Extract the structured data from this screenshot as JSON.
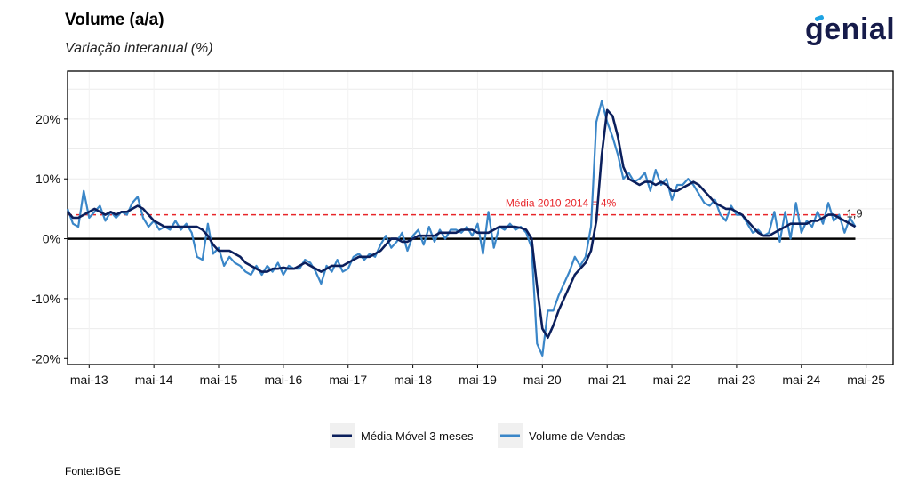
{
  "header": {
    "title": "Volume (a/a)",
    "subtitle": "Variação interanual (%)",
    "logo_text": "genial"
  },
  "footer": {
    "source": "Fonte:IBGE"
  },
  "colors": {
    "ma": "#0b1f5c",
    "volume": "#3a86c8",
    "ref": "#e8262a",
    "zero": "#000000"
  },
  "chart_data": {
    "type": "line",
    "title": "Volume (a/a)",
    "subtitle": "Variação interanual (%)",
    "xlabel": "",
    "ylabel": "",
    "x_ticks": [
      "mai-13",
      "mai-14",
      "mai-15",
      "mai-16",
      "mai-17",
      "mai-18",
      "mai-19",
      "mai-20",
      "mai-21",
      "mai-22",
      "mai-23",
      "mai-24",
      "mai-25"
    ],
    "y_ticks": [
      20,
      10,
      0,
      -10,
      -20
    ],
    "y_tick_labels": [
      "20%",
      "10%",
      "0%",
      "-10%",
      "-20%"
    ],
    "ylim": [
      -21,
      28
    ],
    "x_range": [
      "2013-01",
      "2025-10"
    ],
    "grid": true,
    "legend_position": "bottom",
    "reference_line": {
      "value": 4,
      "label": "Média 2010-2014 = 4%"
    },
    "last_value_label": "1,9",
    "x": [
      "2013-01",
      "2013-02",
      "2013-03",
      "2013-04",
      "2013-05",
      "2013-06",
      "2013-07",
      "2013-08",
      "2013-09",
      "2013-10",
      "2013-11",
      "2013-12",
      "2014-01",
      "2014-02",
      "2014-03",
      "2014-04",
      "2014-05",
      "2014-06",
      "2014-07",
      "2014-08",
      "2014-09",
      "2014-10",
      "2014-11",
      "2014-12",
      "2015-01",
      "2015-02",
      "2015-03",
      "2015-04",
      "2015-05",
      "2015-06",
      "2015-07",
      "2015-08",
      "2015-09",
      "2015-10",
      "2015-11",
      "2015-12",
      "2016-01",
      "2016-02",
      "2016-03",
      "2016-04",
      "2016-05",
      "2016-06",
      "2016-07",
      "2016-08",
      "2016-09",
      "2016-10",
      "2016-11",
      "2016-12",
      "2017-01",
      "2017-02",
      "2017-03",
      "2017-04",
      "2017-05",
      "2017-06",
      "2017-07",
      "2017-08",
      "2017-09",
      "2017-10",
      "2017-11",
      "2017-12",
      "2018-01",
      "2018-02",
      "2018-03",
      "2018-04",
      "2018-05",
      "2018-06",
      "2018-07",
      "2018-08",
      "2018-09",
      "2018-10",
      "2018-11",
      "2018-12",
      "2019-01",
      "2019-02",
      "2019-03",
      "2019-04",
      "2019-05",
      "2019-06",
      "2019-07",
      "2019-08",
      "2019-09",
      "2019-10",
      "2019-11",
      "2019-12",
      "2020-01",
      "2020-02",
      "2020-03",
      "2020-04",
      "2020-05",
      "2020-06",
      "2020-07",
      "2020-08",
      "2020-09",
      "2020-10",
      "2020-11",
      "2020-12",
      "2021-01",
      "2021-02",
      "2021-03",
      "2021-04",
      "2021-05",
      "2021-06",
      "2021-07",
      "2021-08",
      "2021-09",
      "2021-10",
      "2021-11",
      "2021-12",
      "2022-01",
      "2022-02",
      "2022-03",
      "2022-04",
      "2022-05",
      "2022-06",
      "2022-07",
      "2022-08",
      "2022-09",
      "2022-10",
      "2022-11",
      "2022-12",
      "2023-01",
      "2023-02",
      "2023-03",
      "2023-04",
      "2023-05",
      "2023-06",
      "2023-07",
      "2023-08",
      "2023-09",
      "2023-10",
      "2023-11",
      "2023-12",
      "2024-01",
      "2024-02",
      "2024-03",
      "2024-04",
      "2024-05",
      "2024-06",
      "2024-07",
      "2024-08",
      "2024-09",
      "2024-10",
      "2024-11",
      "2024-12",
      "2025-01",
      "2025-02",
      "2025-03"
    ],
    "series": [
      {
        "name": "Média Móvel 3 meses",
        "key": "ma",
        "values": [
          4.5,
          3.5,
          3.5,
          4.0,
          4.5,
          5.0,
          4.5,
          4.0,
          4.5,
          4.0,
          4.5,
          4.5,
          5.0,
          5.5,
          5.0,
          4.0,
          3.0,
          2.5,
          2.0,
          2.0,
          2.0,
          2.0,
          2.0,
          2.0,
          2.0,
          1.5,
          0.5,
          -1.0,
          -2.0,
          -2.0,
          -2.0,
          -2.5,
          -3.0,
          -4.0,
          -4.5,
          -5.0,
          -5.5,
          -5.5,
          -5.0,
          -5.0,
          -4.8,
          -5.0,
          -5.0,
          -4.5,
          -4.0,
          -4.5,
          -5.0,
          -5.5,
          -5.0,
          -4.5,
          -4.5,
          -4.5,
          -4.0,
          -3.5,
          -3.0,
          -3.0,
          -3.0,
          -2.5,
          -2.0,
          -1.0,
          0.0,
          0.0,
          -0.5,
          -0.5,
          0.0,
          0.5,
          0.5,
          0.5,
          0.5,
          1.0,
          1.0,
          1.0,
          1.0,
          1.5,
          1.5,
          1.5,
          1.0,
          1.0,
          1.0,
          1.5,
          2.0,
          2.0,
          2.0,
          2.0,
          1.8,
          1.5,
          0.0,
          -8.0,
          -15.0,
          -16.5,
          -14.5,
          -12.0,
          -10.0,
          -8.0,
          -6.0,
          -5.0,
          -4.0,
          -2.0,
          3.0,
          14.0,
          21.5,
          20.5,
          17.0,
          12.0,
          10.0,
          9.5,
          9.0,
          9.5,
          9.5,
          9.0,
          9.5,
          9.0,
          8.0,
          8.0,
          8.5,
          9.0,
          9.5,
          9.0,
          8.0,
          7.0,
          6.0,
          5.5,
          5.0,
          5.0,
          4.5,
          4.0,
          3.0,
          2.0,
          1.0,
          0.5,
          0.5,
          1.0,
          1.5,
          2.0,
          2.5,
          2.5,
          2.5,
          2.5,
          3.0,
          3.0,
          3.5,
          4.0,
          4.0,
          3.5,
          3.0,
          2.5,
          2.0
        ]
      },
      {
        "name": "Volume de Vendas",
        "key": "volume",
        "values": [
          5.0,
          2.5,
          2.0,
          8.0,
          3.5,
          4.5,
          5.5,
          3.0,
          4.5,
          3.5,
          4.5,
          4.0,
          6.0,
          7.0,
          3.5,
          2.0,
          3.0,
          1.5,
          2.0,
          1.5,
          3.0,
          1.5,
          2.5,
          1.0,
          -3.0,
          -3.5,
          2.5,
          -2.5,
          -1.5,
          -4.5,
          -3.0,
          -4.0,
          -4.5,
          -5.5,
          -6.0,
          -4.5,
          -6.0,
          -4.5,
          -5.5,
          -4.0,
          -6.0,
          -4.5,
          -5.0,
          -5.0,
          -3.5,
          -4.0,
          -5.5,
          -7.5,
          -4.5,
          -5.5,
          -3.5,
          -5.5,
          -5.0,
          -3.0,
          -2.5,
          -3.5,
          -2.5,
          -3.0,
          -1.0,
          0.5,
          -1.5,
          -0.5,
          1.0,
          -2.0,
          0.5,
          1.5,
          -1.0,
          2.0,
          -0.5,
          1.5,
          0.0,
          1.5,
          1.5,
          1.0,
          2.0,
          0.5,
          2.5,
          -2.5,
          4.5,
          -1.5,
          2.0,
          1.5,
          2.5,
          1.5,
          2.0,
          1.0,
          -1.5,
          -17.5,
          -19.5,
          -12.0,
          -12.0,
          -9.5,
          -7.5,
          -5.5,
          -3.0,
          -4.5,
          -3.0,
          2.0,
          19.5,
          23.0,
          19.5,
          17.0,
          14.0,
          10.0,
          11.0,
          9.5,
          10.0,
          11.0,
          8.0,
          11.5,
          9.0,
          10.0,
          6.5,
          9.0,
          9.0,
          10.0,
          9.0,
          7.5,
          6.0,
          5.5,
          6.5,
          4.0,
          3.0,
          5.5,
          4.0,
          4.0,
          2.5,
          1.0,
          1.5,
          0.5,
          1.0,
          4.5,
          -0.5,
          4.5,
          0.0,
          6.0,
          1.0,
          3.0,
          2.0,
          4.5,
          2.5,
          6.0,
          3.0,
          4.0,
          1.0,
          3.5,
          2.0
        ]
      }
    ]
  },
  "legend": {
    "items": [
      {
        "label": "Média Móvel 3 meses",
        "key": "ma"
      },
      {
        "label": "Volume de Vendas",
        "key": "volume"
      }
    ]
  }
}
